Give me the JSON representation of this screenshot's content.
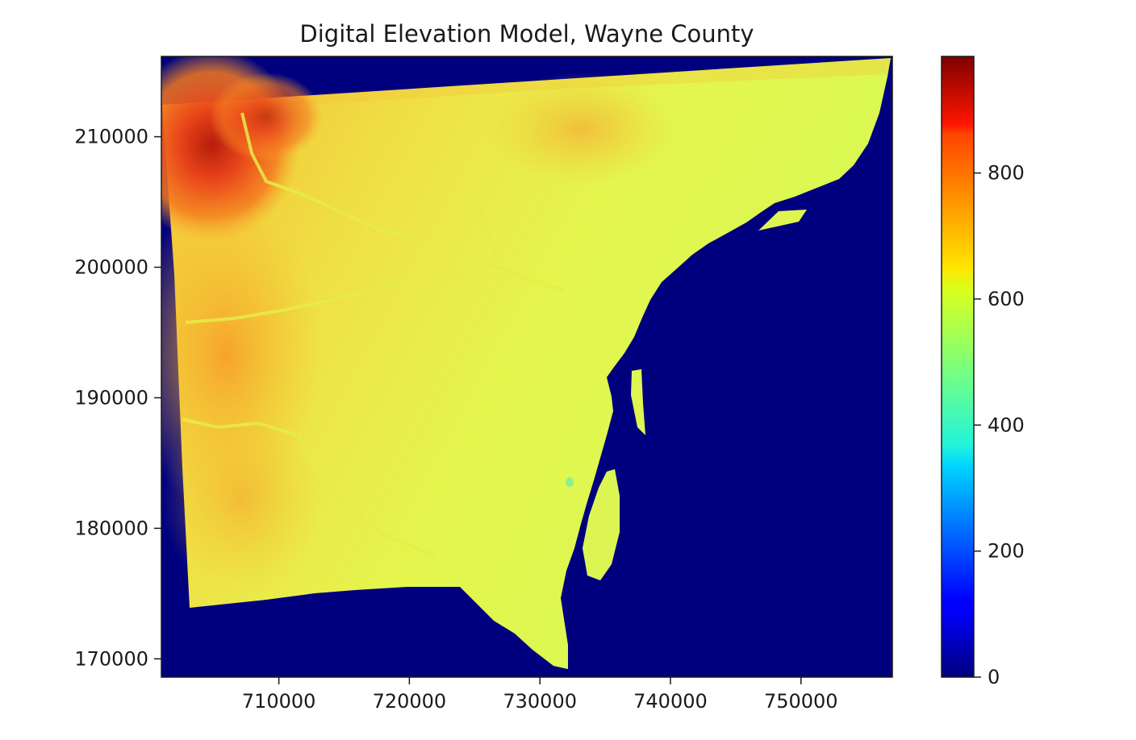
{
  "chart_data": {
    "type": "heatmap",
    "title": "Digital Elevation Model, Wayne County",
    "xlabel": "",
    "ylabel": "",
    "xlim": [
      701000,
      757000
    ],
    "ylim": [
      168600,
      216150
    ],
    "x_ticks": [
      {
        "value": 710000,
        "label": "710000"
      },
      {
        "value": 720000,
        "label": "720000"
      },
      {
        "value": 730000,
        "label": "730000"
      },
      {
        "value": 740000,
        "label": "740000"
      },
      {
        "value": 750000,
        "label": "750000"
      }
    ],
    "y_ticks": [
      {
        "value": 170000,
        "label": "170000"
      },
      {
        "value": 180000,
        "label": "180000"
      },
      {
        "value": 190000,
        "label": "190000"
      },
      {
        "value": 200000,
        "label": "200000"
      },
      {
        "value": 210000,
        "label": "210000"
      }
    ],
    "colorbar": {
      "colormap": "jet",
      "range": [
        0,
        985
      ],
      "ticks": [
        {
          "value": 0,
          "label": "0"
        },
        {
          "value": 200,
          "label": "200"
        },
        {
          "value": 400,
          "label": "400"
        },
        {
          "value": 600,
          "label": "600"
        },
        {
          "value": 800,
          "label": "800"
        }
      ]
    },
    "nodata_value": 0,
    "nodata_color": "#00007f",
    "elevation_ranges": {
      "northwest_highlands": [
        750,
        985
      ],
      "west_upland": [
        680,
        760
      ],
      "central_plain": [
        600,
        680
      ],
      "river_shoreline": [
        560,
        600
      ]
    },
    "data_footprint_corners": [
      [
        701050,
        212400
      ],
      [
        757000,
        215900
      ],
      [
        732500,
        168800
      ],
      [
        703100,
        173800
      ]
    ]
  }
}
